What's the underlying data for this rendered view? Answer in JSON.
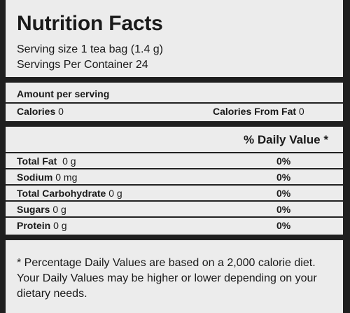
{
  "label": {
    "title": "Nutrition Facts",
    "serving_size": "Serving size 1 tea bag (1.4 g)",
    "servings_per_container": "Servings Per Container 24",
    "amount_per_serving": "Amount per serving",
    "calories_label": "Calories",
    "calories_value": " 0",
    "calories_fat_label": "Calories From Fat",
    "calories_fat_value": " 0",
    "daily_value_header": "% Daily Value *",
    "nutrients": [
      {
        "name": "Total Fat",
        "amount": "  0 g",
        "dv": "0%"
      },
      {
        "name": "Sodium",
        "amount": " 0 mg",
        "dv": "0%"
      },
      {
        "name": "Total Carbohydrate",
        "amount": " 0 g",
        "dv": "0%"
      },
      {
        "name": "Sugars",
        "amount": " 0 g",
        "dv": "0%"
      },
      {
        "name": "Protein",
        "amount": " 0 g",
        "dv": "0%"
      }
    ],
    "footnote": "* Percentage Daily Values are based on a 2,000 calorie diet. Your Daily Values may be higher or lower depending on your dietary needs."
  }
}
